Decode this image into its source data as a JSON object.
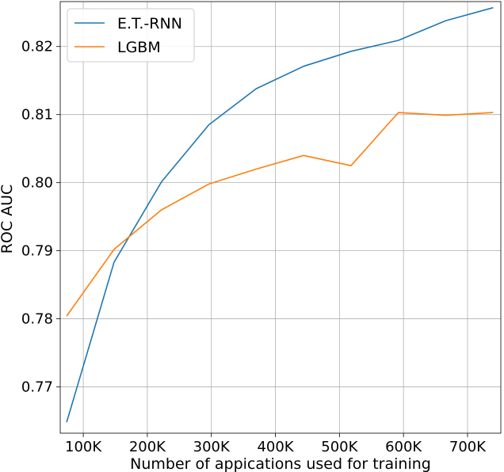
{
  "chart_data": {
    "type": "line",
    "title": "",
    "xlabel": "Number of appications used for training",
    "ylabel": "ROC AUC",
    "xlim": [
      64000,
      752000
    ],
    "ylim": [
      0.7632,
      0.8266
    ],
    "xticks": [
      100000,
      200000,
      300000,
      400000,
      500000,
      600000,
      700000
    ],
    "xtick_labels": [
      "100K",
      "200K",
      "300K",
      "400K",
      "500K",
      "600K",
      "700K"
    ],
    "yticks": [
      0.77,
      0.78,
      0.79,
      0.8,
      0.81,
      0.82
    ],
    "ytick_labels": [
      "0.77",
      "0.78",
      "0.79",
      "0.80",
      "0.81",
      "0.82"
    ],
    "grid": true,
    "legend_position": "top-left",
    "series": [
      {
        "name": "E.T.-RNN",
        "color": "#1f77b4",
        "x": [
          74000,
          148000,
          222000,
          296000,
          370000,
          444000,
          518000,
          592000,
          666000,
          740000
        ],
        "y": [
          0.7648,
          0.7883,
          0.8001,
          0.8085,
          0.8138,
          0.8171,
          0.8193,
          0.8209,
          0.8238,
          0.8257
        ]
      },
      {
        "name": "LGBM",
        "color": "#ff7f0e",
        "x": [
          74000,
          148000,
          222000,
          296000,
          370000,
          444000,
          518000,
          592000,
          666000,
          740000
        ],
        "y": [
          0.7804,
          0.7902,
          0.796,
          0.7998,
          0.802,
          0.804,
          0.8025,
          0.8103,
          0.8099,
          0.8103
        ]
      }
    ]
  }
}
